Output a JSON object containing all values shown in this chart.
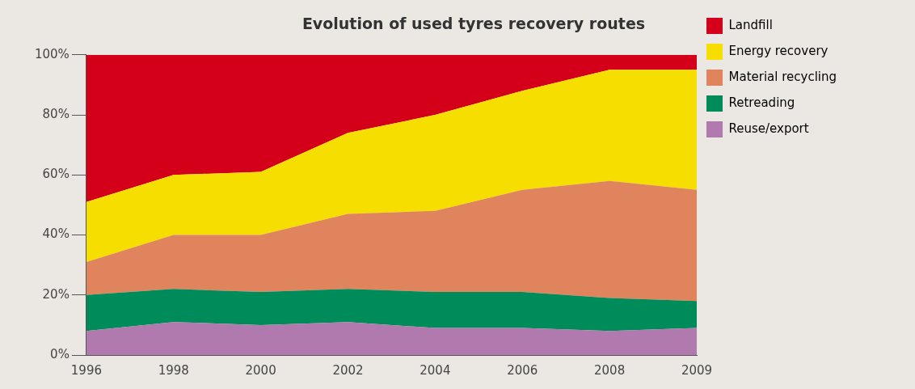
{
  "chart_data": {
    "type": "area",
    "title": "Evolution of used tyres recovery routes",
    "stacked": true,
    "categories": [
      "1996",
      "1998",
      "2000",
      "2002",
      "2004",
      "2006",
      "2008",
      "2009"
    ],
    "series": [
      {
        "name": "Reuse/export",
        "color": "#b07aae",
        "values": [
          8,
          11,
          10,
          11,
          9,
          9,
          8,
          9
        ]
      },
      {
        "name": "Retreading",
        "color": "#008c5a",
        "values": [
          12,
          11,
          11,
          11,
          12,
          12,
          11,
          9
        ]
      },
      {
        "name": "Material recycling",
        "color": "#e0845e",
        "values": [
          11,
          18,
          19,
          25,
          27,
          34,
          39,
          37
        ]
      },
      {
        "name": "Energy recovery",
        "color": "#f5de00",
        "values": [
          20,
          20,
          21,
          27,
          32,
          33,
          37,
          40
        ]
      },
      {
        "name": "Landfill",
        "color": "#d4001a",
        "values": [
          49,
          40,
          39,
          26,
          20,
          12,
          5,
          5
        ]
      }
    ],
    "ylim": [
      0,
      100
    ],
    "yticks": [
      {
        "value": 0,
        "label": "0%"
      },
      {
        "value": 20,
        "label": "20%"
      },
      {
        "value": 40,
        "label": "40%"
      },
      {
        "value": 60,
        "label": "60%"
      },
      {
        "value": 80,
        "label": "80%"
      },
      {
        "value": 100,
        "label": "100%"
      }
    ],
    "grid": false,
    "legend": "right",
    "marker": "none"
  }
}
